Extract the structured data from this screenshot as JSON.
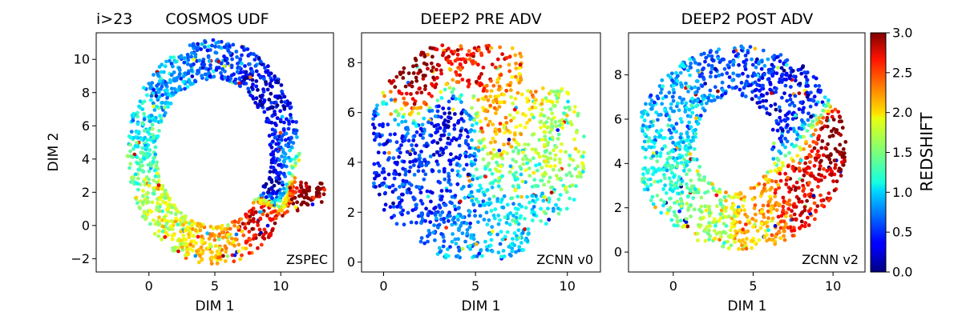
{
  "figure_label": "i>23",
  "colorbar": {
    "label": "REDSHIFT",
    "range": [
      0,
      3
    ],
    "ticks": [
      "0.0",
      "0.5",
      "1.0",
      "1.5",
      "2.0",
      "2.5",
      "3.0"
    ],
    "colormap": "jet"
  },
  "chart_data": [
    {
      "type": "scatter",
      "title": "COSMOS UDF",
      "annotation": "ZSPEC",
      "xlabel": "DIM 1",
      "ylabel": "DIM 2",
      "xlim": [
        -4,
        14
      ],
      "ylim": [
        -2.8,
        11.6
      ],
      "xticks": [
        "0",
        "5",
        "10"
      ],
      "yticks": [
        "−2",
        "0",
        "2",
        "4",
        "6",
        "8",
        "10"
      ],
      "shape": "ring",
      "anchors": [
        {
          "x": 1.0,
          "y": 9.5,
          "z": 0.85
        },
        {
          "x": 5.0,
          "y": 10.0,
          "z": 0.55
        },
        {
          "x": 9.0,
          "y": 7.0,
          "z": 0.3
        },
        {
          "x": 9.0,
          "y": 2.5,
          "z": 0.2
        },
        {
          "x": 12.0,
          "y": 1.5,
          "z": 3.0
        },
        {
          "x": 8.5,
          "y": 0.5,
          "z": 2.7
        },
        {
          "x": 5.0,
          "y": -1.5,
          "z": 2.05
        },
        {
          "x": 1.0,
          "y": 0.5,
          "z": 1.7
        },
        {
          "x": -2.5,
          "y": 3.5,
          "z": 1.4
        },
        {
          "x": -1.0,
          "y": 6.5,
          "z": 1.1
        }
      ]
    },
    {
      "type": "scatter",
      "title": "DEEP2 PRE ADV",
      "annotation": "ZCNN v0",
      "xlabel": "DIM 1",
      "ylabel": "",
      "xlim": [
        -1.2,
        11.8
      ],
      "ylim": [
        -0.4,
        9.2
      ],
      "xticks": [
        "0",
        "5",
        "10"
      ],
      "yticks": [
        "0",
        "2",
        "4",
        "6",
        "8"
      ],
      "shape": "blob",
      "anchors": [
        {
          "x": 2.0,
          "y": 7.5,
          "z": 3.0
        },
        {
          "x": 5.0,
          "y": 8.0,
          "z": 2.6
        },
        {
          "x": 6.5,
          "y": 6.0,
          "z": 2.1
        },
        {
          "x": 9.0,
          "y": 4.5,
          "z": 1.6
        },
        {
          "x": 8.0,
          "y": 2.0,
          "z": 1.1
        },
        {
          "x": 5.0,
          "y": 0.8,
          "z": 0.85
        },
        {
          "x": 2.0,
          "y": 3.0,
          "z": 0.5
        },
        {
          "x": 0.0,
          "y": 4.3,
          "z": 0.4
        },
        {
          "x": 3.5,
          "y": 5.5,
          "z": 0.3
        }
      ]
    },
    {
      "type": "scatter",
      "title": "DEEP2 POST ADV",
      "annotation": "ZCNN v2",
      "xlabel": "DIM 1",
      "ylabel": "",
      "xlim": [
        -2.8,
        12.0
      ],
      "ylim": [
        -0.9,
        9.9
      ],
      "xticks": [
        "0",
        "5",
        "10"
      ],
      "yticks": [
        "0",
        "2",
        "4",
        "6",
        "8"
      ],
      "shape": "hollow",
      "anchors": [
        {
          "x": 3.0,
          "y": 9.0,
          "z": 0.6
        },
        {
          "x": 8.0,
          "y": 7.5,
          "z": 0.35
        },
        {
          "x": 10.5,
          "y": 5.0,
          "z": 3.0
        },
        {
          "x": 8.0,
          "y": 2.5,
          "z": 2.7
        },
        {
          "x": 5.5,
          "y": 1.5,
          "z": 2.1
        },
        {
          "x": 2.0,
          "y": 0.5,
          "z": 1.6
        },
        {
          "x": -1.5,
          "y": 3.0,
          "z": 1.2
        },
        {
          "x": 0.0,
          "y": 7.0,
          "z": 0.9
        },
        {
          "x": 6.0,
          "y": 6.0,
          "z": 0.4
        }
      ]
    }
  ]
}
